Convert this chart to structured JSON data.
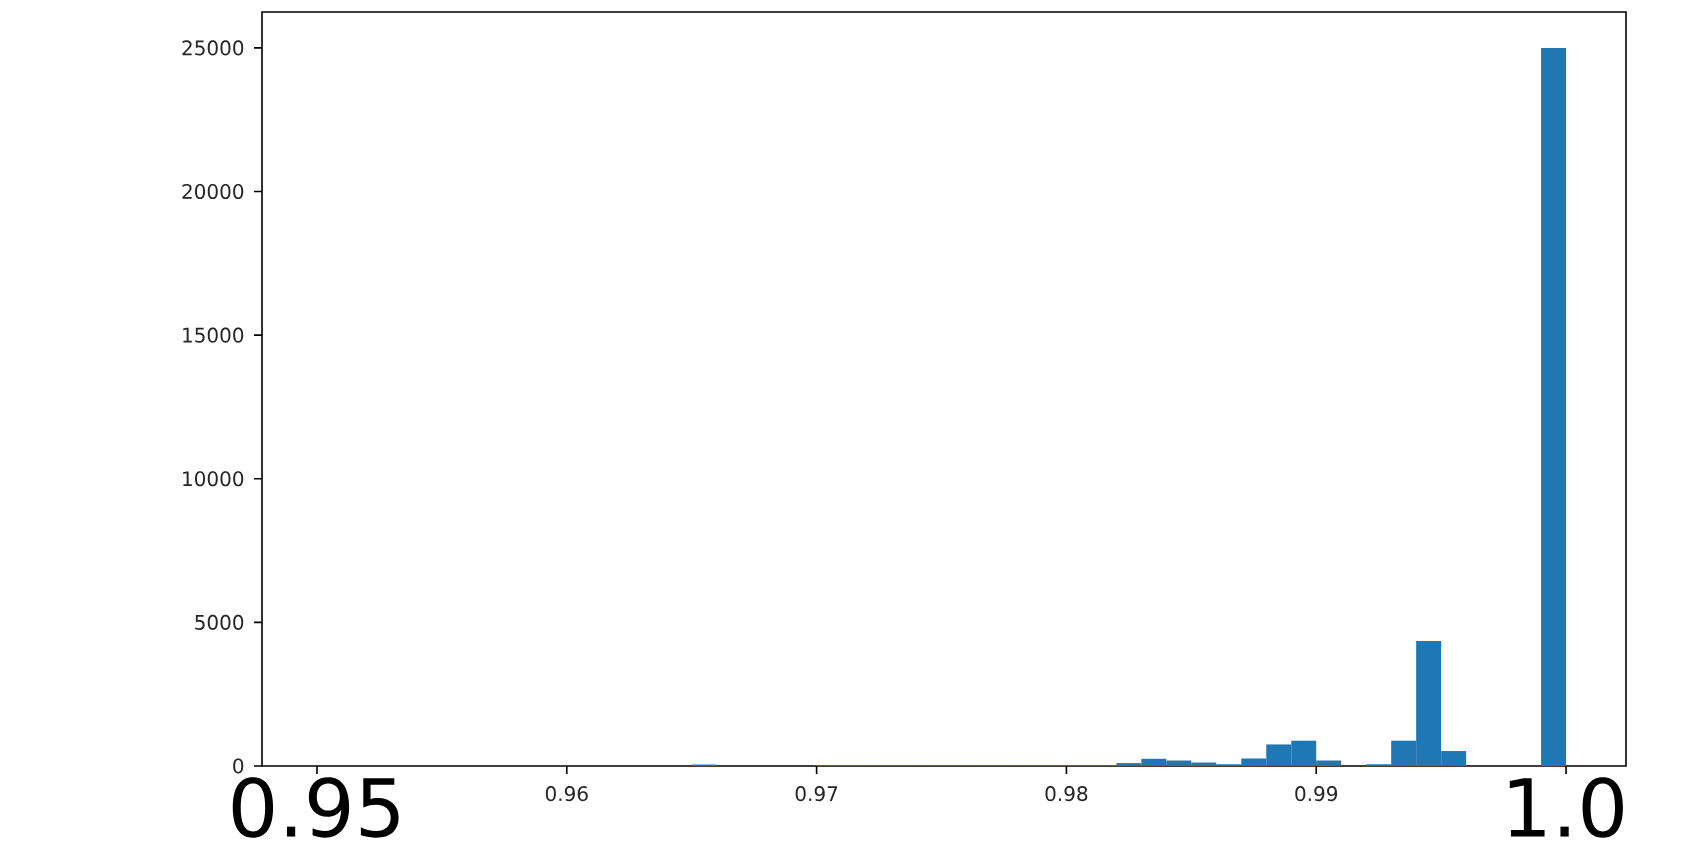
{
  "chart_data": {
    "type": "histogram",
    "bins": [
      0.95,
      0.951,
      0.952,
      0.953,
      0.954,
      0.955,
      0.956,
      0.957,
      0.958,
      0.959,
      0.96,
      0.961,
      0.962,
      0.963,
      0.964,
      0.965,
      0.966,
      0.967,
      0.968,
      0.969,
      0.97,
      0.971,
      0.972,
      0.973,
      0.974,
      0.975,
      0.976,
      0.977,
      0.978,
      0.979,
      0.98,
      0.981,
      0.982,
      0.983,
      0.984,
      0.985,
      0.986,
      0.987,
      0.988,
      0.989,
      0.99,
      0.991,
      0.992,
      0.993,
      0.994,
      0.995,
      0.996,
      0.997,
      0.998,
      0.999,
      1.0
    ],
    "values": [
      0,
      0,
      0,
      0,
      0,
      0,
      0,
      0,
      0,
      0,
      0,
      0,
      0,
      0,
      0,
      50,
      0,
      0,
      0,
      0,
      30,
      30,
      30,
      30,
      30,
      30,
      30,
      30,
      30,
      30,
      30,
      30,
      100,
      250,
      190,
      120,
      60,
      260,
      750,
      880,
      190,
      0,
      60,
      880,
      4350,
      520,
      0,
      0,
      0,
      25000
    ],
    "color": "#1f77b4",
    "xlim": [
      0.9478,
      1.0024
    ],
    "ylim": [
      0,
      26250
    ],
    "xticks": [
      {
        "value": 0.95,
        "label": null
      },
      0.96,
      0.97,
      0.98,
      0.99,
      {
        "value": 1.0,
        "label": null
      }
    ],
    "yticks": [
      0,
      5000,
      10000,
      15000,
      20000,
      25000
    ],
    "annotations": [
      "0.95",
      "1.0"
    ]
  }
}
